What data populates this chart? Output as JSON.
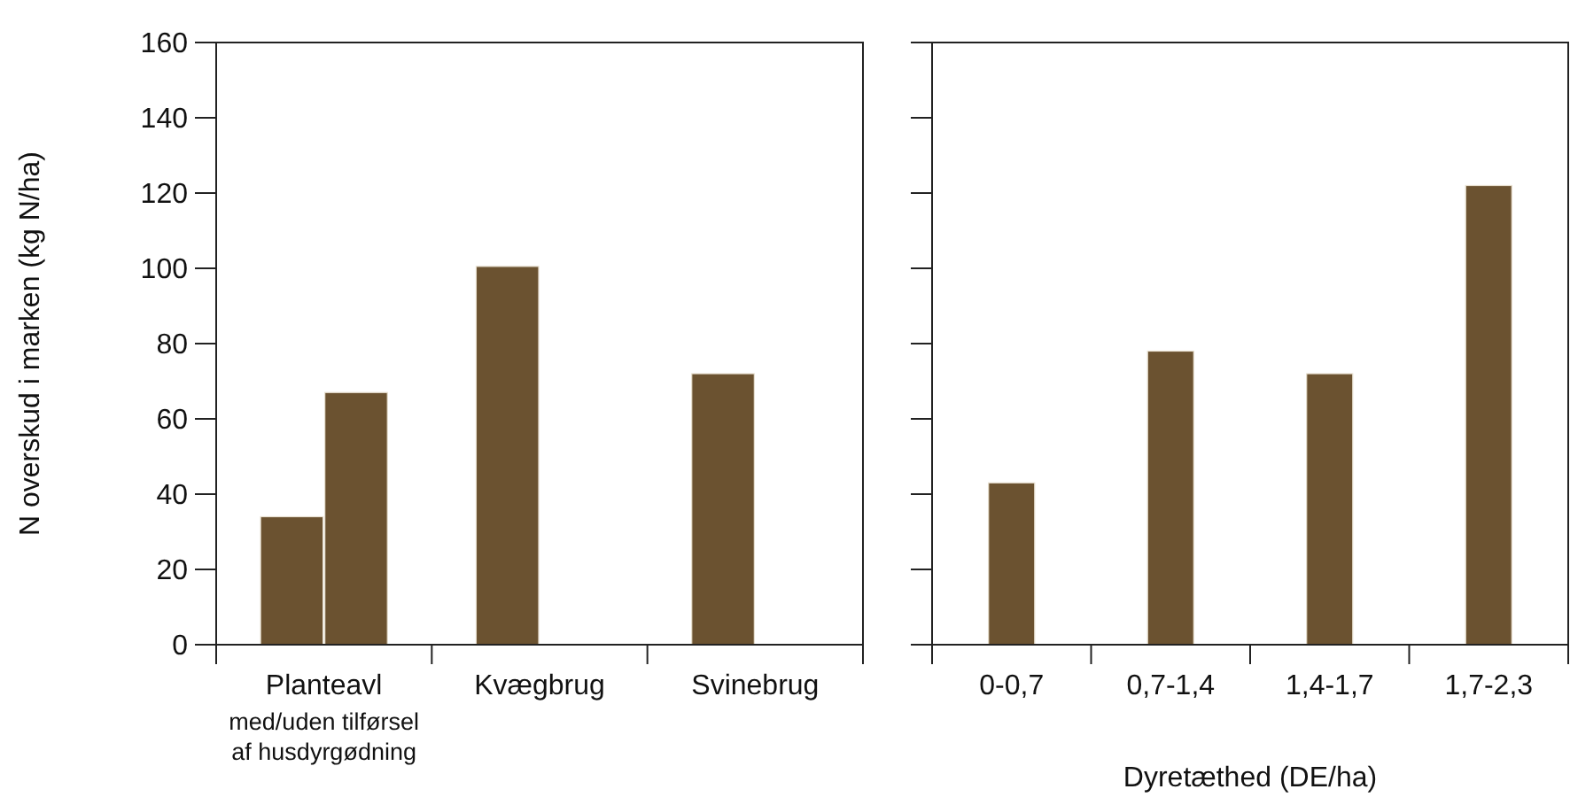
{
  "chart_data": [
    {
      "type": "bar",
      "ylabel": "N overskud i marken (kg N/ha)",
      "categories": [
        "Planteavl\nmed/uden tilførsel\naf husdyrgødning",
        "Kvægbrug",
        "Svinebrug"
      ],
      "series": [
        {
          "color": "#6b5230",
          "values": [
            34,
            100.5,
            72
          ]
        },
        {
          "color": "#6b5230",
          "values": [
            67,
            null,
            null
          ]
        }
      ],
      "ylim": [
        0,
        160
      ],
      "yticks": [
        0,
        20,
        40,
        60,
        80,
        100,
        120,
        140,
        160
      ]
    },
    {
      "type": "bar",
      "xlabel": "Dyretæthed (DE/ha)",
      "categories": [
        "0-0,7",
        "0,7-1,4",
        "1,4-1,7",
        "1,7-2,3"
      ],
      "series": [
        {
          "color": "#6b5230",
          "values": [
            43,
            78,
            72,
            122
          ]
        }
      ],
      "ylim": [
        0,
        160
      ],
      "yticks": [
        0,
        20,
        40,
        60,
        80,
        100,
        120,
        140,
        160
      ],
      "tick_labels": "x"
    }
  ]
}
